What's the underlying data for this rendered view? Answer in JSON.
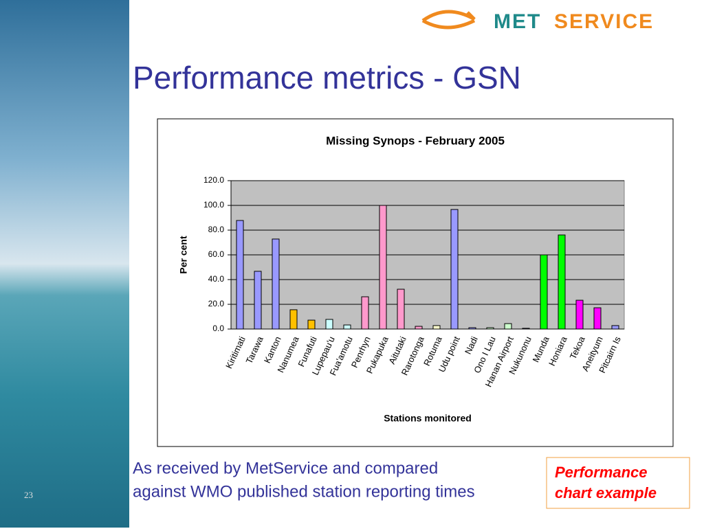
{
  "slide": {
    "title": "Performance metrics - GSN",
    "logo": [
      "MET",
      "SERVICE"
    ],
    "caption": [
      "As received by MetService and compared",
      "against WMO published station reporting times"
    ],
    "note": [
      "Performance",
      "chart example"
    ],
    "page_number": "23"
  },
  "chart_data": {
    "type": "bar",
    "title": "Missing Synops - February 2005",
    "x_label": "Stations monitored",
    "y_label": "Per cent",
    "categories": [
      "Kiritimati",
      "Tarawa",
      "Kanton",
      "Nanumea",
      "Funafuti",
      "Lupepau'u",
      "Fua'amotu",
      "Penrhyn",
      "Pukapuka",
      "Aitutaki",
      "Rarotonga",
      "Rotuma",
      "Udu point",
      "Nadi",
      "Ono I Lau",
      "Hanan Airport",
      "Nukunonu",
      "Munda",
      "Honiara",
      "Tekoa",
      "Aneityum",
      "Pitcairn Is"
    ],
    "values": [
      87.8,
      46.7,
      72.8,
      15.6,
      7.2,
      7.8,
      3.3,
      26.1,
      100,
      32.2,
      2.2,
      2.8,
      96.7,
      1.1,
      1.1,
      4.4,
      0.6,
      60,
      76.1,
      23.3,
      17.2,
      2.8
    ],
    "colors": [
      "#9999ff",
      "#9999ff",
      "#9999ff",
      "#ffc000",
      "#ffc000",
      "#ccffff",
      "#ccffff",
      "#ff99cc",
      "#ff99cc",
      "#ff99cc",
      "#ff99cc",
      "#ffffcc",
      "#9999ff",
      "#9999ff",
      "#ccffcc",
      "#ccffcc",
      "#9999ff",
      "#00ff00",
      "#00ff00",
      "#ff00ff",
      "#ff00ff",
      "#9999ff"
    ],
    "ylim": [
      0,
      120
    ],
    "yticks": [
      {
        "value": 0,
        "label": "0.0"
      },
      {
        "value": 20,
        "label": "20.0"
      },
      {
        "value": 40,
        "label": "40.0"
      },
      {
        "value": 60,
        "label": "60.0"
      },
      {
        "value": 80,
        "label": "80.0"
      },
      {
        "value": 100,
        "label": "100.0"
      },
      {
        "value": 120,
        "label": "120.0"
      }
    ],
    "grid": true
  }
}
